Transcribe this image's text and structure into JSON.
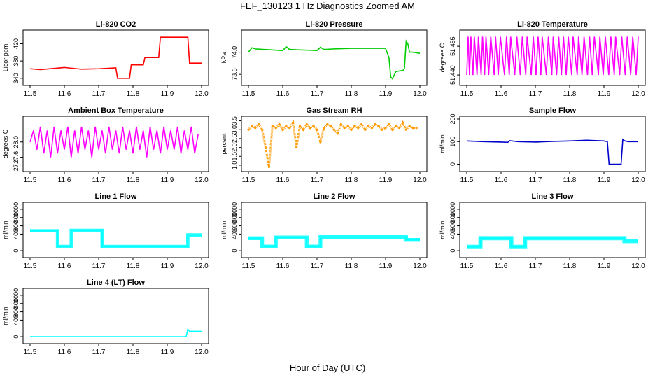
{
  "figure": {
    "title": "FEF_130123  1 Hz Diagnostics Zoomed AM",
    "xlabel": "Hour of Day (UTC)"
  },
  "chart_data": [
    {
      "type": "line",
      "title": "Li-820 CO2",
      "ylabel": "Licor ppm",
      "color": "#ff0000",
      "xlim": [
        11.5,
        12.0
      ],
      "ylim": [
        330,
        445
      ],
      "xticks": [
        "11.5",
        "11.6",
        "11.7",
        "11.8",
        "11.9",
        "12.0"
      ],
      "yticks": [
        "340",
        "380",
        "420"
      ],
      "series": [
        {
          "x": [
            11.5,
            11.53,
            11.6,
            11.65,
            11.7,
            11.75,
            11.755,
            11.79,
            11.795,
            11.83,
            11.835,
            11.875,
            11.88,
            11.96,
            11.965,
            12.0
          ],
          "y": [
            362,
            360,
            365,
            361,
            362,
            364,
            340,
            340,
            371,
            371,
            388,
            388,
            435,
            435,
            375,
            375
          ]
        }
      ]
    },
    {
      "type": "line",
      "title": "Li-820 Pressure",
      "ylabel": "kPa",
      "color": "#00cc00",
      "xlim": [
        11.5,
        12.0
      ],
      "ylim": [
        73.45,
        74.35
      ],
      "xticks": [
        "11.5",
        "11.6",
        "11.7",
        "11.8",
        "11.9",
        "12.0"
      ],
      "yticks": [
        "73.6",
        "74.0"
      ],
      "series": [
        {
          "x": [
            11.5,
            11.51,
            11.52,
            11.6,
            11.61,
            11.62,
            11.7,
            11.71,
            11.72,
            11.75,
            11.8,
            11.85,
            11.9,
            11.91,
            11.915,
            11.92,
            11.93,
            11.95,
            11.955,
            11.96,
            11.965,
            11.97,
            11.98,
            12.0
          ],
          "y": [
            74.0,
            74.08,
            74.06,
            74.03,
            74.1,
            74.05,
            74.03,
            74.09,
            74.05,
            74.06,
            74.07,
            74.07,
            74.07,
            73.9,
            73.55,
            73.52,
            73.65,
            73.67,
            73.7,
            74.2,
            74.15,
            74.0,
            74.0,
            73.98
          ]
        }
      ]
    },
    {
      "type": "line",
      "title": "Li-820 Temperature",
      "ylabel": "degrees C",
      "color": "#ff00ff",
      "xlim": [
        11.5,
        12.0
      ],
      "ylim": [
        51.436,
        51.462
      ],
      "xticks": [
        "11.5",
        "11.6",
        "11.7",
        "11.8",
        "11.9",
        "12.0"
      ],
      "yticks": [
        "51.440",
        "51.455"
      ],
      "series": [
        {
          "x": [
            11.5,
            11.504,
            11.508,
            11.512,
            11.518,
            11.522,
            11.53,
            11.534,
            11.542,
            11.546,
            11.552,
            11.556,
            11.564,
            11.57,
            11.58,
            11.584,
            11.592,
            11.598,
            11.61,
            11.616,
            11.624,
            11.628,
            11.64,
            11.646,
            11.656,
            11.662,
            11.672,
            11.676,
            11.688,
            11.694,
            11.702,
            11.708,
            11.716,
            11.72,
            11.732,
            11.738,
            11.748,
            11.752,
            11.762,
            11.768,
            11.776,
            11.782,
            11.79,
            11.796,
            11.806,
            11.81,
            11.822,
            11.826,
            11.836,
            11.842,
            11.852,
            11.858,
            11.866,
            11.872,
            11.884,
            11.888,
            11.898,
            11.904,
            11.914,
            11.92,
            11.93,
            11.934,
            11.946,
            11.952,
            11.962,
            11.968,
            11.978,
            11.984,
            11.994,
            12.0
          ],
          "y": [
            51.44,
            51.46,
            51.44,
            51.46,
            51.44,
            51.46,
            51.44,
            51.46,
            51.44,
            51.46,
            51.44,
            51.46,
            51.44,
            51.46,
            51.44,
            51.46,
            51.44,
            51.46,
            51.44,
            51.46,
            51.44,
            51.46,
            51.44,
            51.46,
            51.44,
            51.46,
            51.44,
            51.46,
            51.44,
            51.46,
            51.44,
            51.46,
            51.44,
            51.46,
            51.44,
            51.46,
            51.44,
            51.46,
            51.44,
            51.46,
            51.44,
            51.46,
            51.44,
            51.46,
            51.44,
            51.46,
            51.44,
            51.46,
            51.44,
            51.46,
            51.44,
            51.46,
            51.44,
            51.46,
            51.44,
            51.46,
            51.44,
            51.46,
            51.44,
            51.46,
            51.44,
            51.46,
            51.44,
            51.46,
            51.44,
            51.46,
            51.44,
            51.46,
            51.44,
            51.46
          ]
        }
      ]
    },
    {
      "type": "line",
      "title": "Ambient Box Temperature",
      "ylabel": "degrees C",
      "color": "#ff00ff",
      "xlim": [
        11.5,
        12.0
      ],
      "ylim": [
        27.3,
        28.6
      ],
      "xticks": [
        "11.5",
        "11.6",
        "11.7",
        "11.8",
        "11.9",
        "12.0"
      ],
      "yticks": [
        "27.4",
        "27.6",
        "28.0"
      ],
      "series": [
        {
          "x": [
            11.5,
            11.51,
            11.52,
            11.53,
            11.54,
            11.55,
            11.56,
            11.57,
            11.58,
            11.59,
            11.6,
            11.61,
            11.62,
            11.63,
            11.64,
            11.65,
            11.66,
            11.67,
            11.68,
            11.69,
            11.7,
            11.71,
            11.72,
            11.73,
            11.74,
            11.75,
            11.76,
            11.77,
            11.78,
            11.79,
            11.8,
            11.81,
            11.82,
            11.83,
            11.84,
            11.85,
            11.86,
            11.87,
            11.88,
            11.89,
            11.9,
            11.91,
            11.92,
            11.93,
            11.94,
            11.95,
            11.96,
            11.97,
            11.98,
            11.99
          ],
          "y": [
            28.0,
            28.3,
            27.8,
            28.4,
            27.7,
            28.3,
            27.6,
            28.4,
            27.7,
            28.3,
            27.8,
            28.4,
            27.6,
            28.3,
            27.7,
            28.4,
            27.8,
            28.3,
            27.6,
            28.4,
            27.8,
            28.3,
            27.7,
            28.4,
            27.8,
            28.3,
            27.7,
            28.4,
            27.8,
            28.3,
            27.7,
            28.4,
            27.8,
            28.3,
            27.6,
            28.4,
            27.8,
            28.3,
            27.7,
            28.4,
            27.8,
            28.3,
            27.8,
            28.4,
            27.7,
            28.3,
            27.8,
            28.4,
            27.7,
            28.2
          ]
        }
      ]
    },
    {
      "type": "scatter",
      "title": "Gas Stream RH",
      "ylabel": "percent",
      "color": "#ff9900",
      "xlim": [
        11.5,
        12.0
      ],
      "ylim": [
        0.8,
        3.6
      ],
      "xticks": [
        "11.5",
        "11.6",
        "11.7",
        "11.8",
        "11.9",
        "12.0"
      ],
      "yticks": [
        "1.0",
        "1.5",
        "2.0",
        "2.5",
        "3.0",
        "3.5"
      ],
      "series": [
        {
          "x": [
            11.5,
            11.51,
            11.52,
            11.53,
            11.54,
            11.55,
            11.56,
            11.57,
            11.58,
            11.59,
            11.6,
            11.61,
            11.62,
            11.63,
            11.64,
            11.65,
            11.66,
            11.67,
            11.68,
            11.69,
            11.7,
            11.71,
            11.72,
            11.73,
            11.74,
            11.75,
            11.76,
            11.77,
            11.78,
            11.79,
            11.8,
            11.81,
            11.82,
            11.83,
            11.84,
            11.85,
            11.86,
            11.87,
            11.88,
            11.89,
            11.9,
            11.91,
            11.92,
            11.93,
            11.94,
            11.95,
            11.96,
            11.97,
            11.98,
            11.99
          ],
          "y": [
            3.0,
            3.2,
            3.1,
            3.3,
            3.0,
            2.0,
            0.9,
            3.2,
            3.1,
            3.3,
            3.0,
            3.2,
            3.1,
            3.4,
            2.0,
            3.2,
            3.0,
            3.3,
            3.1,
            3.2,
            3.0,
            2.3,
            3.1,
            3.3,
            3.2,
            3.0,
            2.8,
            3.3,
            3.1,
            3.2,
            3.0,
            3.2,
            3.1,
            3.3,
            3.0,
            3.2,
            3.1,
            3.3,
            3.2,
            3.0,
            3.1,
            3.3,
            3.0,
            3.2,
            3.1,
            3.4,
            3.0,
            3.2,
            3.1,
            3.1
          ]
        }
      ]
    },
    {
      "type": "line",
      "title": "Sample Flow",
      "ylabel": "ml/min",
      "color": "#0000cc",
      "xlim": [
        11.5,
        12.0
      ],
      "ylim": [
        -20,
        200
      ],
      "xticks": [
        "11.5",
        "11.6",
        "11.7",
        "11.8",
        "11.9",
        "12.0"
      ],
      "yticks": [
        "0",
        "100",
        "200"
      ],
      "series": [
        {
          "x": [
            11.5,
            11.55,
            11.6,
            11.62,
            11.625,
            11.65,
            11.7,
            11.75,
            11.8,
            11.85,
            11.9,
            11.91,
            11.915,
            11.95,
            11.955,
            11.96,
            11.97,
            12.0
          ],
          "y": [
            103,
            100,
            98,
            97,
            104,
            100,
            98,
            101,
            103,
            106,
            103,
            100,
            0,
            0,
            110,
            104,
            100,
            100
          ]
        }
      ]
    },
    {
      "type": "line",
      "title": "Line 1 Flow",
      "ylabel": "ml/min",
      "color": "#00ffff",
      "xlim": [
        11.5,
        12.0
      ],
      "ylim": [
        -100,
        1100
      ],
      "xticks": [
        "11.5",
        "11.6",
        "11.7",
        "11.8",
        "11.9",
        "12.0"
      ],
      "yticks": [
        "0",
        "400",
        "600",
        "800",
        "1000"
      ],
      "band_width": 80,
      "series": [
        {
          "x": [
            11.5,
            11.58,
            11.58,
            11.62,
            11.62,
            11.71,
            11.71,
            11.96,
            11.96,
            12.0
          ],
          "y": [
            480,
            480,
            100,
            100,
            490,
            490,
            100,
            100,
            380,
            380
          ]
        }
      ]
    },
    {
      "type": "line",
      "title": "Line 2 Flow",
      "ylabel": "ml/min",
      "color": "#00ffff",
      "xlim": [
        11.5,
        12.0
      ],
      "ylim": [
        -100,
        1100
      ],
      "xticks": [
        "11.5",
        "11.6",
        "11.7",
        "11.8",
        "11.9",
        "12.0"
      ],
      "yticks": [
        "0",
        "400",
        "600",
        "800",
        "1000"
      ],
      "band_width": 90,
      "series": [
        {
          "x": [
            11.5,
            11.54,
            11.54,
            11.58,
            11.58,
            11.67,
            11.67,
            11.71,
            11.71,
            11.96,
            11.96,
            12.0
          ],
          "y": [
            300,
            300,
            100,
            100,
            320,
            320,
            100,
            100,
            330,
            330,
            260,
            260
          ]
        }
      ]
    },
    {
      "type": "line",
      "title": "Line 3 Flow",
      "ylabel": "ml/min",
      "color": "#00ffff",
      "xlim": [
        11.5,
        12.0
      ],
      "ylim": [
        -100,
        1100
      ],
      "xticks": [
        "11.5",
        "11.6",
        "11.7",
        "11.8",
        "11.9",
        "12.0"
      ],
      "yticks": [
        "0",
        "400",
        "600",
        "800",
        "1000"
      ],
      "band_width": 100,
      "series": [
        {
          "x": [
            11.5,
            11.54,
            11.54,
            11.63,
            11.63,
            11.67,
            11.67,
            11.96,
            11.96,
            12.0
          ],
          "y": [
            90,
            90,
            300,
            300,
            90,
            90,
            300,
            300,
            230,
            230
          ]
        }
      ]
    },
    {
      "type": "line",
      "title": "Line 4 (LT) Flow",
      "ylabel": "ml/min",
      "color": "#00ffff",
      "xlim": [
        11.5,
        12.0
      ],
      "ylim": [
        -100,
        1100
      ],
      "xticks": [
        "11.5",
        "11.6",
        "11.7",
        "11.8",
        "11.9",
        "12.0"
      ],
      "yticks": [
        "0",
        "400",
        "600",
        "800",
        "1000"
      ],
      "band_width": 0,
      "series": [
        {
          "x": [
            11.5,
            11.955,
            11.96,
            11.965,
            12.0
          ],
          "y": [
            0,
            0,
            180,
            130,
            130
          ]
        }
      ]
    }
  ]
}
